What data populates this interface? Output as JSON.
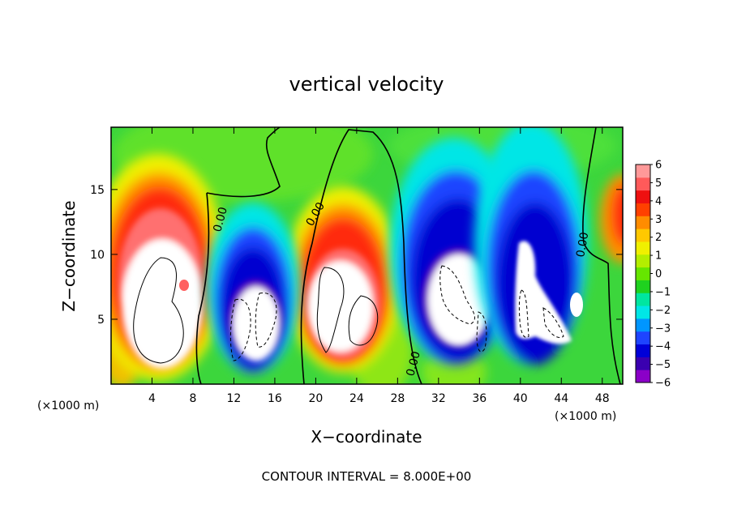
{
  "chart_data": {
    "type": "heatmap",
    "title": "vertical velocity",
    "xlabel": "X−coordinate",
    "ylabel": "Z−coordinate",
    "x_units": "(×1000 m)",
    "x_units_left": "(×1000 m)",
    "xlim": [
      0,
      50
    ],
    "ylim": [
      0,
      19.8
    ],
    "x_ticks": [
      4,
      8,
      12,
      16,
      20,
      24,
      28,
      32,
      36,
      40,
      44,
      48
    ],
    "x_tick_labels": [
      "4",
      "8",
      "12",
      "16",
      "20",
      "24",
      "28",
      "32",
      "36",
      "40",
      "44",
      "48"
    ],
    "y_ticks": [
      5,
      10,
      15
    ],
    "y_tick_labels": [
      "5",
      "10",
      "15"
    ],
    "colorbar": {
      "min": -6,
      "max": 6,
      "ticks": [
        6,
        5,
        4,
        3,
        2,
        1,
        0,
        -1,
        -2,
        -3,
        -4,
        -5,
        -6
      ],
      "tick_labels": [
        "6",
        "5",
        "4",
        "3",
        "2",
        "1",
        "0",
        "−1",
        "−2",
        "−3",
        "−4",
        "−5",
        "−6"
      ],
      "colors": [
        "#8b00c8",
        "#3a00b0",
        "#0000d8",
        "#1e44ff",
        "#0096ff",
        "#00e6e6",
        "#00e6a0",
        "#1fd21f",
        "#66e600",
        "#b4ee00",
        "#f0f000",
        "#ffc800",
        "#ff8c00",
        "#ff4000",
        "#ee1010",
        "#ff5a5a",
        "#ff9999"
      ],
      "out_of_range_color": "#ffffff"
    },
    "contour_interval": 8,
    "contour_labels": [
      "0.00",
      "0.00",
      "0.00",
      "0.00"
    ],
    "cells": [
      {
        "x": 5,
        "z": 6,
        "w": 5.5,
        "type": "updraft"
      },
      {
        "x": 23,
        "z": 6,
        "w": 5.5,
        "type": "updraft"
      },
      {
        "x": 14,
        "z": 5,
        "w": -5,
        "type": "downdraft"
      },
      {
        "x": 34,
        "z": 6,
        "w": -5.5,
        "type": "downdraft"
      },
      {
        "x": 41,
        "z": 6,
        "w": -5,
        "type": "downdraft"
      },
      {
        "x": 49.5,
        "z": 13,
        "w": 3.5,
        "type": "updraft"
      }
    ]
  },
  "footer": {
    "contour_text": "CONTOUR INTERVAL = 8.000E+00"
  }
}
